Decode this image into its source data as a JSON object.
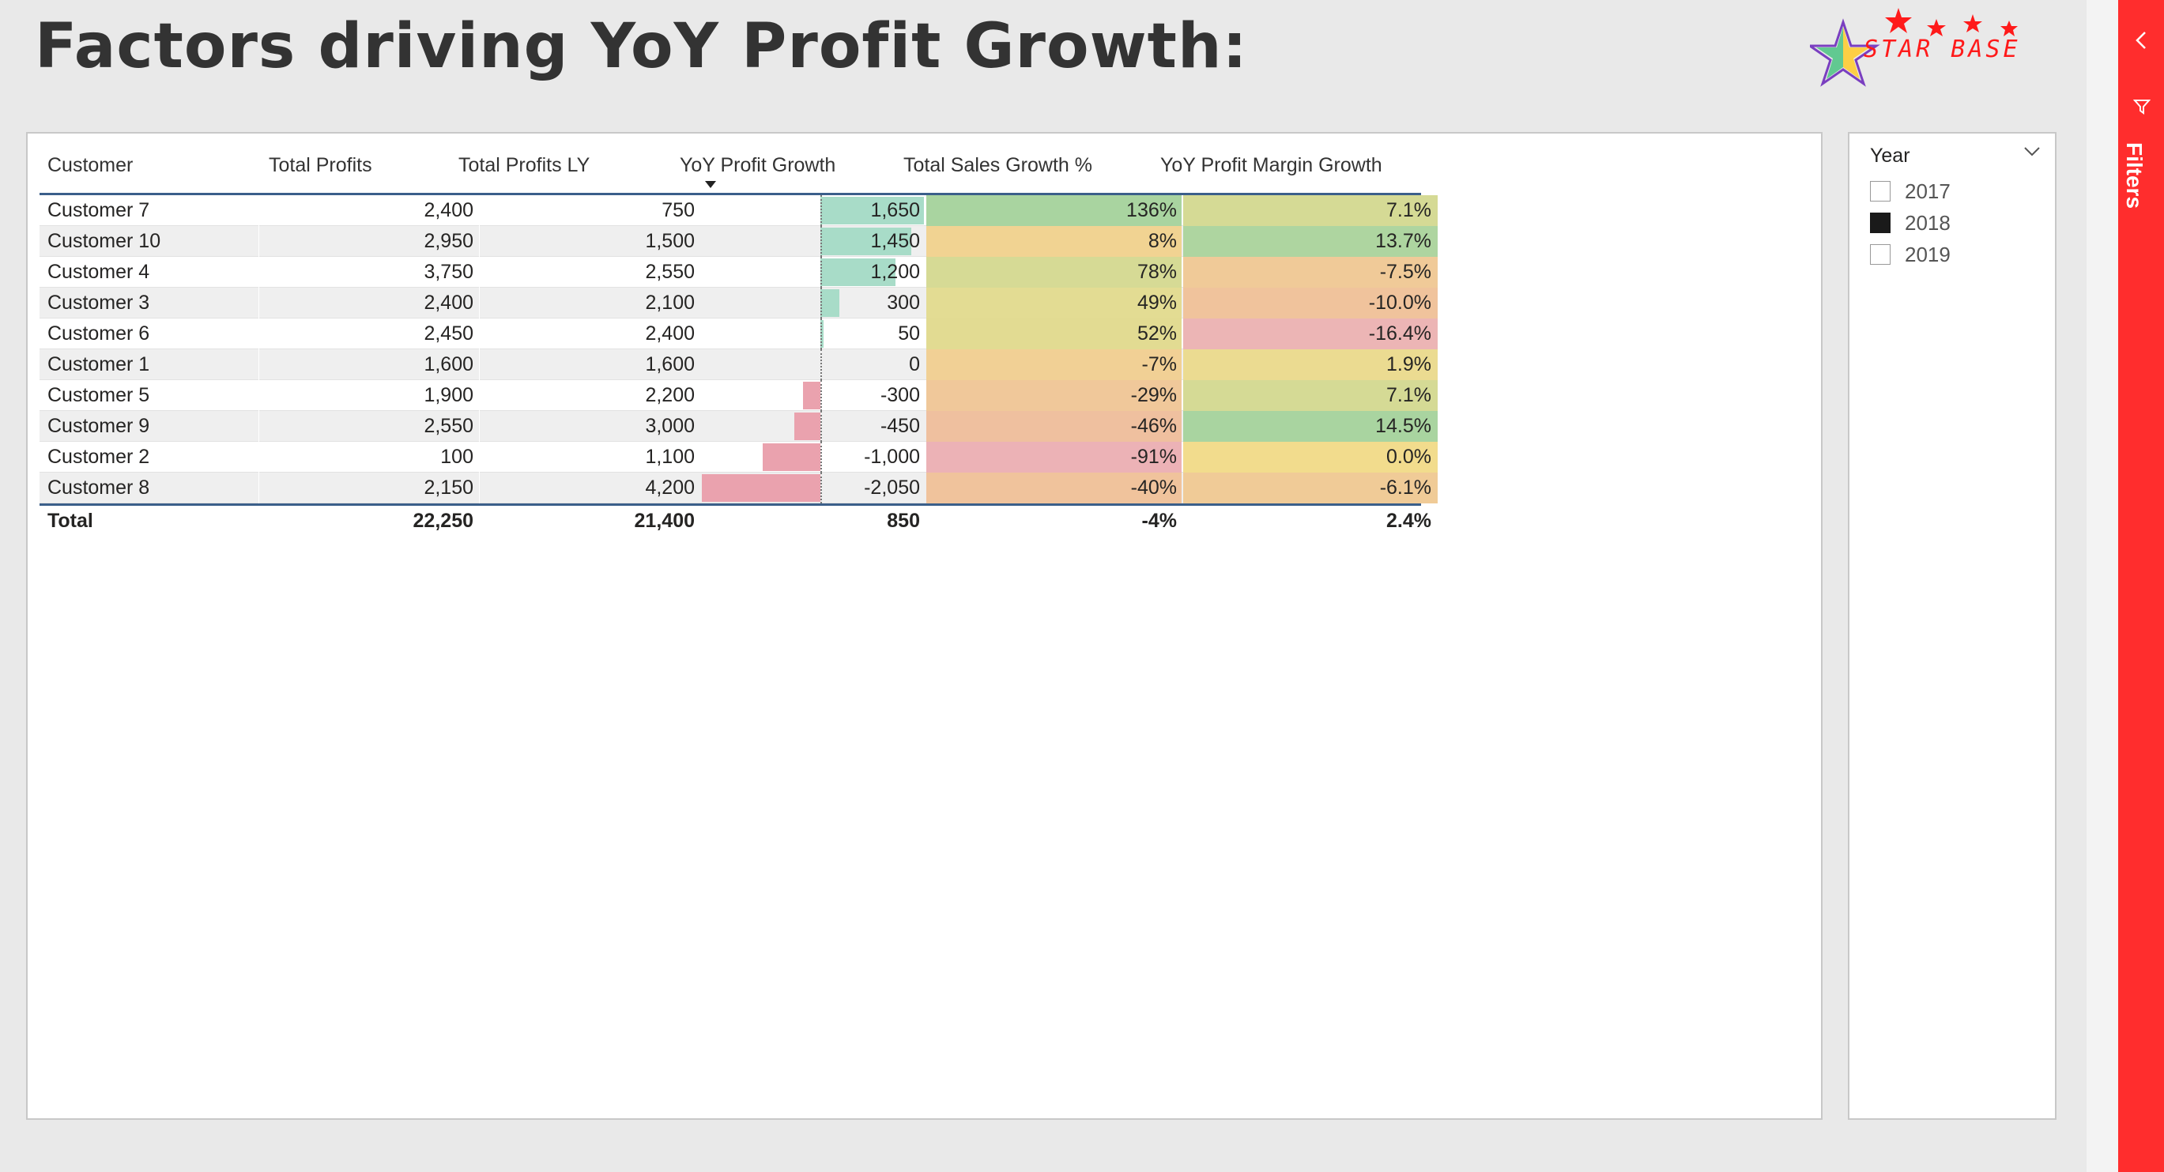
{
  "page": {
    "title": "Factors driving YoY Profit Growth:"
  },
  "logo": {
    "text": "STAR BASE"
  },
  "colors": {
    "green": "#a8d5a2",
    "yellow": "#f2df8c",
    "red": "#eeb2b8",
    "bar_pos": "#a8dcc8",
    "bar_neg": "#eaa2ae",
    "filters_pane": "#ff2d2d"
  },
  "table": {
    "headers": [
      "Customer",
      "Total Profits",
      "Total Profits LY",
      "YoY Profit Growth",
      "Total Sales Growth %",
      "YoY Profit Margin Growth"
    ],
    "sorted_column": "YoY Profit Growth",
    "rows": [
      {
        "customer": "Customer 7",
        "profits": "2,400",
        "profits_ly": "750",
        "yoy": "1,650",
        "yoy_value": 1650,
        "sales_growth": "136%",
        "sales_color": "#a9d4a0",
        "margin": "7.1%",
        "margin_color": "#d5da95"
      },
      {
        "customer": "Customer 10",
        "profits": "2,950",
        "profits_ly": "1,500",
        "yoy": "1,450",
        "yoy_value": 1450,
        "sales_growth": "8%",
        "sales_color": "#f1d392",
        "margin": "13.7%",
        "margin_color": "#aed5a0"
      },
      {
        "customer": "Customer 4",
        "profits": "3,750",
        "profits_ly": "2,550",
        "yoy": "1,200",
        "yoy_value": 1200,
        "sales_growth": "78%",
        "sales_color": "#d6da95",
        "margin": "-7.5%",
        "margin_color": "#f0ca98"
      },
      {
        "customer": "Customer 3",
        "profits": "2,400",
        "profits_ly": "2,100",
        "yoy": "300",
        "yoy_value": 300,
        "sales_growth": "49%",
        "sales_color": "#e3dc93",
        "margin": "-10.0%",
        "margin_color": "#f0c39c"
      },
      {
        "customer": "Customer 6",
        "profits": "2,450",
        "profits_ly": "2,400",
        "yoy": "50",
        "yoy_value": 50,
        "sales_growth": "52%",
        "sales_color": "#e2db92",
        "margin": "-16.4%",
        "margin_color": "#ecb5b5"
      },
      {
        "customer": "Customer 1",
        "profits": "1,600",
        "profits_ly": "1,600",
        "yoy": "0",
        "yoy_value": 0,
        "sales_growth": "-7%",
        "sales_color": "#f1d095",
        "margin": "1.9%",
        "margin_color": "#ebdb91"
      },
      {
        "customer": "Customer 5",
        "profits": "1,900",
        "profits_ly": "2,200",
        "yoy": "-300",
        "yoy_value": -300,
        "sales_growth": "-29%",
        "sales_color": "#f0c89a",
        "margin": "7.1%",
        "margin_color": "#d5da95"
      },
      {
        "customer": "Customer 9",
        "profits": "2,550",
        "profits_ly": "3,000",
        "yoy": "-450",
        "yoy_value": -450,
        "sales_growth": "-46%",
        "sales_color": "#efc09f",
        "margin": "14.5%",
        "margin_color": "#a9d4a0"
      },
      {
        "customer": "Customer 2",
        "profits": "100",
        "profits_ly": "1,100",
        "yoy": "-1,000",
        "yoy_value": -1000,
        "sales_growth": "-91%",
        "sales_color": "#ecb2b6",
        "margin": "0.0%",
        "margin_color": "#f2dc8d"
      },
      {
        "customer": "Customer 8",
        "profits": "2,150",
        "profits_ly": "4,200",
        "yoy": "-2,050",
        "yoy_value": -2050,
        "sales_growth": "-40%",
        "sales_color": "#f0c39c",
        "margin": "-6.1%",
        "margin_color": "#f0cb97"
      }
    ],
    "total": {
      "label": "Total",
      "profits": "22,250",
      "profits_ly": "21,400",
      "yoy": "850",
      "sales_growth": "-4%",
      "margin": "2.4%"
    }
  },
  "slicer": {
    "title": "Year",
    "options": [
      {
        "label": "2017",
        "checked": false
      },
      {
        "label": "2018",
        "checked": true
      },
      {
        "label": "2019",
        "checked": false
      }
    ]
  },
  "filters_pane": {
    "label": "Filters"
  }
}
